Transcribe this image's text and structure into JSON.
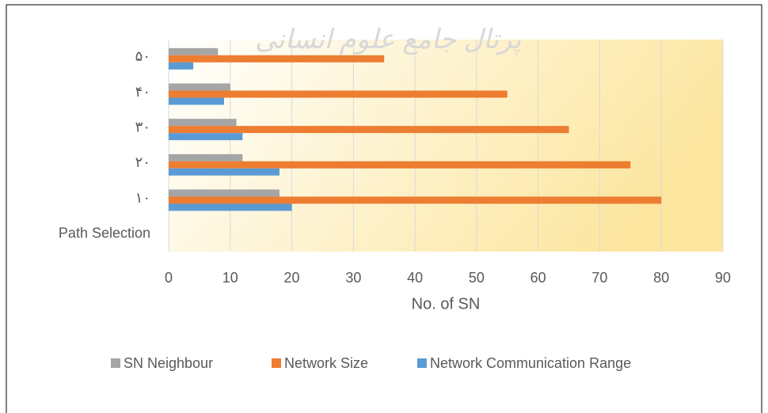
{
  "chart_data": {
    "type": "bar",
    "orientation": "horizontal",
    "watermark": "پرتال جامع علوم انسانی",
    "x_label": "No. of SN",
    "categories": [
      "Path Selection",
      "۱۰",
      "۲۰",
      "۳۰",
      "۴۰",
      "۵۰"
    ],
    "series": [
      {
        "name": "SN Neighbour",
        "color": "#a5a5a5",
        "values": [
          null,
          18,
          12,
          11,
          10,
          8
        ]
      },
      {
        "name": "Network Size",
        "color": "#ed7d31",
        "values": [
          null,
          80,
          75,
          65,
          55,
          35
        ]
      },
      {
        "name": "Network Communication Range",
        "color": "#5b9bd5",
        "values": [
          null,
          20,
          18,
          12,
          9,
          4
        ]
      }
    ],
    "xlim": [
      0,
      90
    ],
    "xticks": [
      0,
      10,
      20,
      30,
      40,
      50,
      60,
      70,
      80,
      90
    ],
    "grid": true,
    "legend": "bottom"
  }
}
